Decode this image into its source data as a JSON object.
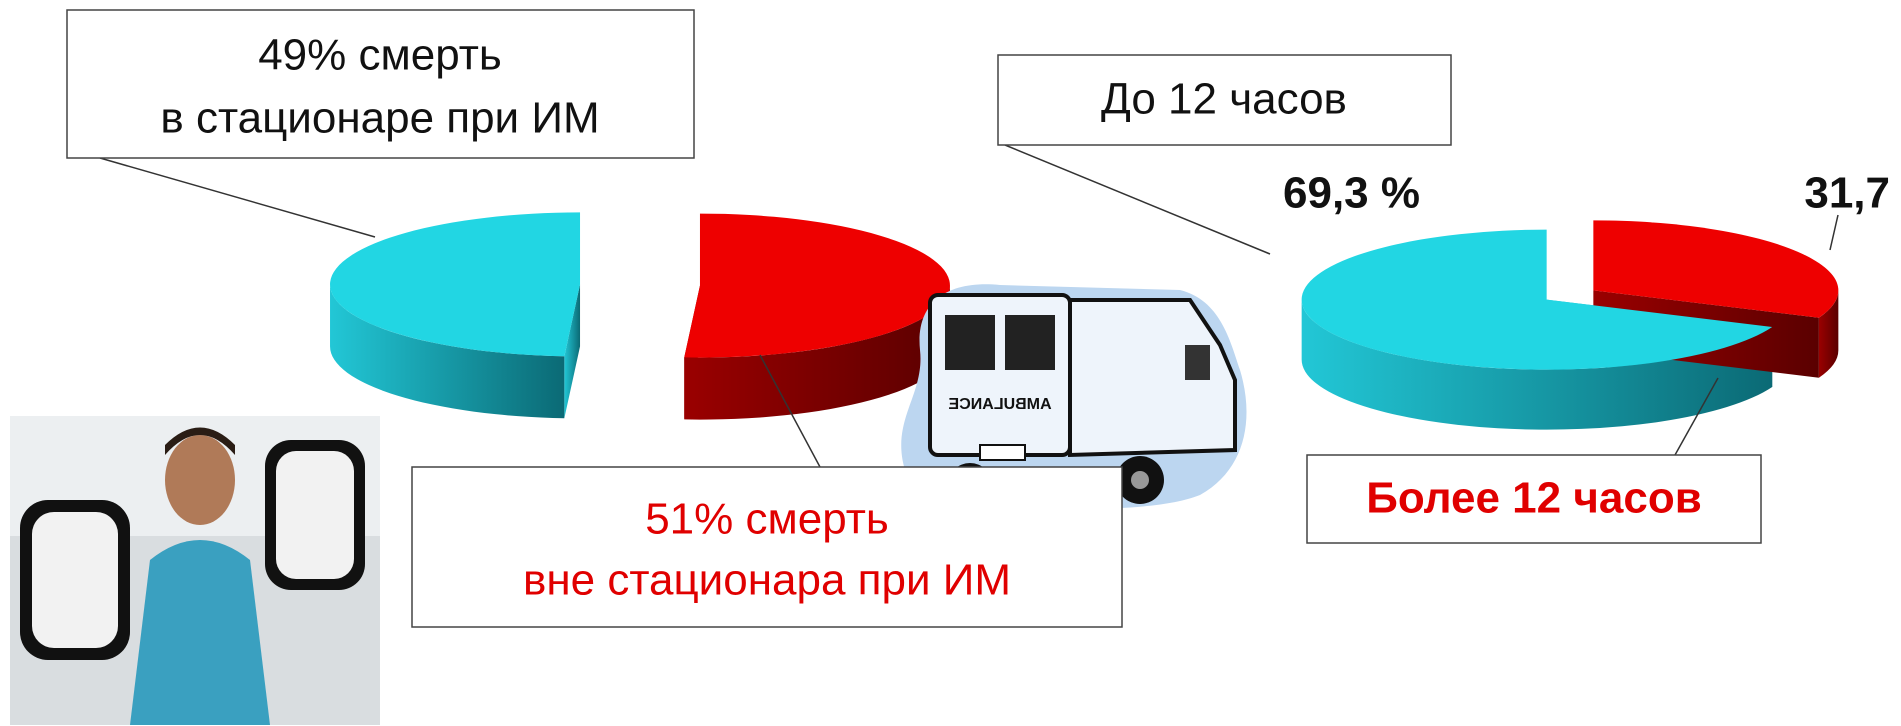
{
  "chart_data": [
    {
      "type": "pie3d",
      "labels": [
        [
          "49% смерть",
          "в стационаре при ИМ"
        ],
        [
          "51%  смерть",
          "вне стационара при ИМ"
        ]
      ],
      "values": [
        49,
        51
      ],
      "colors": [
        "#22d6e3",
        "#ee0000"
      ]
    },
    {
      "type": "pie3d",
      "labels": [
        [
          "До 12 часов"
        ],
        [
          "Более  12 часов"
        ]
      ],
      "values": [
        69.3,
        31.7
      ],
      "value_labels": [
        "69,3 %",
        "31,7"
      ],
      "colors": [
        "#22d6e3",
        "#ee0000"
      ]
    }
  ]
}
